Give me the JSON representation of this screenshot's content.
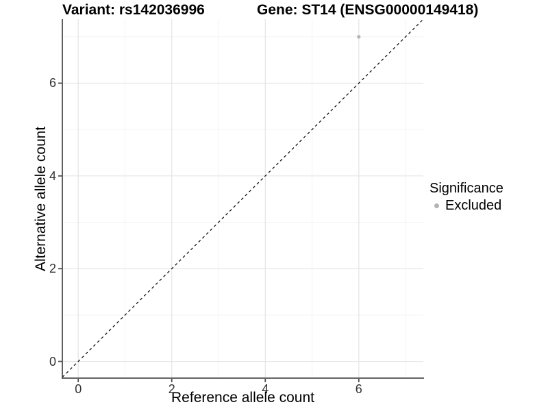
{
  "header": {
    "variant_title": "Variant: rs142036996",
    "gene_title": "Gene: ST14 (ENSG00000149418)"
  },
  "legend": {
    "title": "Significance",
    "items": [
      {
        "label": "Excluded",
        "color": "#b3b3b3"
      }
    ]
  },
  "chart_data": {
    "type": "scatter",
    "title": "Variant: rs142036996  /  Gene: ST14 (ENSG00000149418)",
    "xlabel": "Reference allele count",
    "ylabel": "Alternative allele count",
    "xlim": [
      -0.34,
      7.38
    ],
    "ylim": [
      -0.36,
      7.38
    ],
    "xticks_major": [
      0,
      2,
      4,
      6
    ],
    "xticks_minor": [
      1,
      3,
      5,
      7
    ],
    "yticks_major": [
      0,
      2,
      4,
      6
    ],
    "yticks_minor": [
      1,
      3,
      5,
      7
    ],
    "grid": true,
    "legend_position": "right",
    "reference_line": {
      "equation": "y = x",
      "style": "dashed",
      "color": "#000000"
    },
    "series": [
      {
        "name": "Excluded",
        "color": "#b3b3b3",
        "points": [
          {
            "x": 6,
            "y": 7
          }
        ]
      }
    ],
    "colors": {
      "grid_major": "#e4e4e4",
      "grid_minor": "#f3f3f3",
      "axis_line": "#4d4d4d",
      "tick_label": "#333333"
    }
  }
}
